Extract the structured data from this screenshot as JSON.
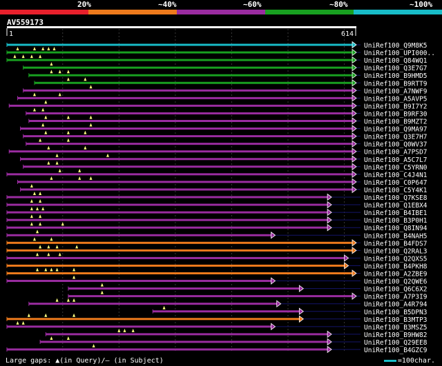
{
  "legend": {
    "labels": [
      "20%",
      "~40%",
      "~60%",
      "~80%",
      "~100%"
    ],
    "colors": [
      "#e8202c",
      "#ee7a1c",
      "#9a2ca0",
      "#18a020",
      "#18bcc8"
    ]
  },
  "query": {
    "name": "AV559173",
    "start": "1",
    "end": "614"
  },
  "footer": {
    "gaps_text": "Large gaps: ▲(in Query)/– (in Subject)",
    "scale_text": "=100char."
  },
  "chart_data": {
    "type": "alignment",
    "query_length": 614,
    "hits": [
      {
        "id": "UniRef100_Q9M8K5",
        "start": 1,
        "end": 614,
        "color": "#18bcc8",
        "gaps": []
      },
      {
        "id": "UniRef100_UPI000..",
        "start": 1,
        "end": 614,
        "color": "#18a020",
        "gaps": [
          20,
          50,
          65,
          75,
          85
        ]
      },
      {
        "id": "UniRef100_Q84WQ1",
        "start": 1,
        "end": 614,
        "color": "#18a020",
        "gaps": [
          15,
          30,
          45,
          60
        ]
      },
      {
        "id": "UniRef100_Q3E7G7",
        "start": 30,
        "end": 614,
        "color": "#18a020",
        "gaps": [
          80
        ]
      },
      {
        "id": "UniRef100_B9HMD5",
        "start": 40,
        "end": 614,
        "color": "#18a020",
        "gaps": [
          80,
          95,
          110
        ]
      },
      {
        "id": "UniRef100_B9RTT9",
        "start": 50,
        "end": 614,
        "color": "#18a020",
        "gaps": [
          110,
          140
        ]
      },
      {
        "id": "UniRef100_A7NWF9",
        "start": 30,
        "end": 614,
        "color": "#9a2ca0",
        "gaps": [
          150
        ]
      },
      {
        "id": "UniRef100_A5AVP5",
        "start": 20,
        "end": 614,
        "color": "#9a2ca0",
        "gaps": [
          50,
          95
        ]
      },
      {
        "id": "UniRef100_B9I7Y2",
        "start": 5,
        "end": 614,
        "color": "#9a2ca0",
        "gaps": [
          70
        ]
      },
      {
        "id": "UniRef100_B9RF30",
        "start": 35,
        "end": 614,
        "color": "#9a2ca0",
        "gaps": [
          50,
          65
        ]
      },
      {
        "id": "UniRef100_B9MZT2",
        "start": 40,
        "end": 614,
        "color": "#9a2ca0",
        "gaps": [
          70,
          110,
          150
        ]
      },
      {
        "id": "UniRef100_Q9MA97",
        "start": 25,
        "end": 614,
        "color": "#9a2ca0",
        "gaps": [
          65,
          150
        ]
      },
      {
        "id": "UniRef100_Q3E7H7",
        "start": 30,
        "end": 614,
        "color": "#9a2ca0",
        "gaps": [
          70,
          110,
          140
        ]
      },
      {
        "id": "UniRef100_Q0WV37",
        "start": 35,
        "end": 614,
        "color": "#9a2ca0",
        "gaps": [
          60,
          110
        ]
      },
      {
        "id": "UniRef100_A7PSD7",
        "start": 5,
        "end": 614,
        "color": "#9a2ca0",
        "gaps": [
          75,
          140
        ]
      },
      {
        "id": "UniRef100_A5C7L7",
        "start": 25,
        "end": 614,
        "color": "#9a2ca0",
        "gaps": [
          90,
          180
        ]
      },
      {
        "id": "UniRef100_C5YRN0",
        "start": 30,
        "end": 614,
        "color": "#9a2ca0",
        "gaps": [
          75,
          90
        ]
      },
      {
        "id": "UniRef100_C4J4N1",
        "start": 1,
        "end": 614,
        "color": "#9a2ca0",
        "gaps": [
          95,
          130
        ]
      },
      {
        "id": "UniRef100_C0P647",
        "start": 20,
        "end": 614,
        "color": "#9a2ca0",
        "gaps": [
          80,
          130,
          150
        ]
      },
      {
        "id": "UniRef100_C5Y4K1",
        "start": 25,
        "end": 614,
        "color": "#9a2ca0",
        "gaps": [
          45
        ]
      },
      {
        "id": "UniRef100_Q7KSE8",
        "start": 1,
        "end": 570,
        "color": "#9a2ca0",
        "gaps": [
          50,
          60
        ]
      },
      {
        "id": "UniRef100_Q1EBX4",
        "start": 1,
        "end": 570,
        "color": "#9a2ca0",
        "gaps": [
          45,
          60
        ]
      },
      {
        "id": "UniRef100_B4IBE1",
        "start": 1,
        "end": 570,
        "color": "#9a2ca0",
        "gaps": [
          45,
          55,
          65
        ]
      },
      {
        "id": "UniRef100_B3P0H1",
        "start": 1,
        "end": 570,
        "color": "#9a2ca0",
        "gaps": [
          45,
          60
        ]
      },
      {
        "id": "UniRef100_Q8IN94",
        "start": 1,
        "end": 570,
        "color": "#9a2ca0",
        "gaps": [
          45,
          60,
          100
        ]
      },
      {
        "id": "UniRef100_B4NAH5",
        "start": 1,
        "end": 470,
        "color": "#9a2ca0",
        "gaps": [
          55
        ]
      },
      {
        "id": "UniRef100_B4FDS7",
        "start": 1,
        "end": 614,
        "color": "#ee7a1c",
        "gaps": [
          50,
          80
        ]
      },
      {
        "id": "UniRef100_Q2RAL3",
        "start": 1,
        "end": 614,
        "color": "#ee7a1c",
        "gaps": [
          60,
          75,
          90,
          125
        ]
      },
      {
        "id": "UniRef100_Q2QXS5",
        "start": 1,
        "end": 600,
        "color": "#9a2ca0",
        "gaps": [
          55,
          75,
          95
        ]
      },
      {
        "id": "UniRef100_B4PKH8",
        "start": 1,
        "end": 600,
        "color": "#ee7a1c",
        "gaps": []
      },
      {
        "id": "UniRef100_A2ZBE9",
        "start": 1,
        "end": 614,
        "color": "#ee7a1c",
        "gaps": [
          55,
          70,
          80,
          90,
          120
        ]
      },
      {
        "id": "UniRef100_Q2QWE6",
        "start": 1,
        "end": 470,
        "color": "#9a2ca0",
        "gaps": [
          120
        ]
      },
      {
        "id": "UniRef100_Q6C6X2",
        "start": 110,
        "end": 520,
        "color": "#9a2ca0",
        "gaps": [
          170
        ]
      },
      {
        "id": "UniRef100_A7P3I9",
        "start": 110,
        "end": 614,
        "color": "#9a2ca0",
        "gaps": [
          170
        ]
      },
      {
        "id": "UniRef100_A4R794",
        "start": 40,
        "end": 480,
        "color": "#9a2ca0",
        "gaps": [
          90,
          110,
          120
        ]
      },
      {
        "id": "UniRef100_B5DPN3",
        "start": 260,
        "end": 520,
        "color": "#9a2ca0",
        "gaps": [
          280
        ]
      },
      {
        "id": "UniRef100_B3MTP3",
        "start": 1,
        "end": 520,
        "color": "#ee7a1c",
        "gaps": [
          40,
          70,
          120
        ]
      },
      {
        "id": "UniRef100_B3MSZ5",
        "start": 1,
        "end": 470,
        "color": "#9a2ca0",
        "gaps": [
          20,
          30
        ]
      },
      {
        "id": "UniRef100_B9HW82",
        "start": 70,
        "end": 570,
        "color": "#9a2ca0",
        "gaps": [
          200,
          210,
          225
        ]
      },
      {
        "id": "UniRef100_Q29EE8",
        "start": 60,
        "end": 570,
        "color": "#9a2ca0",
        "gaps": [
          80,
          110
        ]
      },
      {
        "id": "UniRef100_B4GZC9",
        "start": 1,
        "end": 570,
        "color": "#9a2ca0",
        "gaps": [
          155
        ]
      }
    ]
  }
}
